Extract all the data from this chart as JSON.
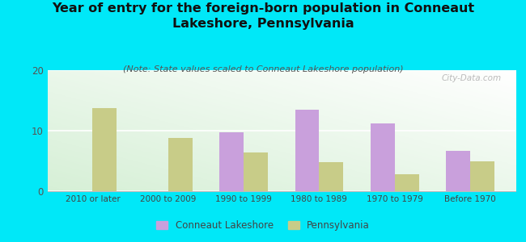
{
  "title": "Year of entry for the foreign-born population in Conneaut\nLakeshore, Pennsylvania",
  "subtitle": "(Note: State values scaled to Conneaut Lakeshore population)",
  "categories": [
    "2010 or later",
    "2000 to 2009",
    "1990 to 1999",
    "1980 to 1989",
    "1970 to 1979",
    "Before 1970"
  ],
  "conneaut_values": [
    0,
    0,
    9.7,
    13.5,
    11.2,
    6.7
  ],
  "pennsylvania_values": [
    13.8,
    8.8,
    6.4,
    4.8,
    2.8,
    4.9
  ],
  "conneaut_color": "#c9a0dc",
  "pennsylvania_color": "#c8cc88",
  "background_outer": "#00e8f8",
  "title_fontsize": 11.5,
  "subtitle_fontsize": 8,
  "ylim": [
    0,
    20
  ],
  "yticks": [
    0,
    10,
    20
  ],
  "bar_width": 0.32,
  "watermark": "City-Data.com",
  "legend_label1": "Conneaut Lakeshore",
  "legend_label2": "Pennsylvania"
}
